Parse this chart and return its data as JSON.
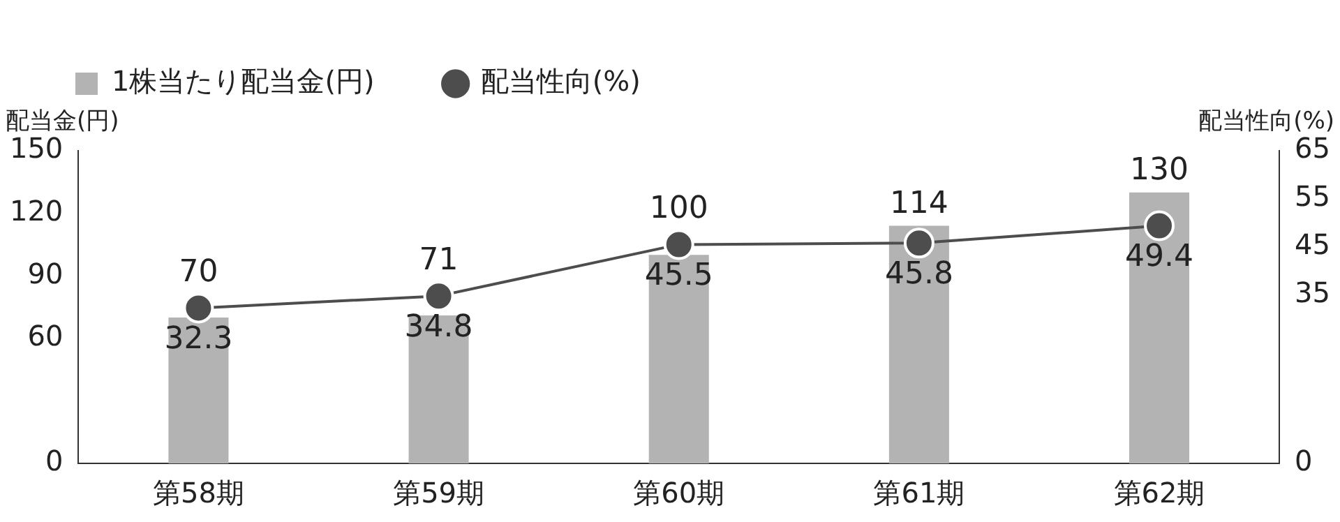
{
  "chart_data": {
    "type": "bar",
    "categories": [
      "第58期",
      "第59期",
      "第60期",
      "第61期",
      "第62期"
    ],
    "ylabel": "配当金(円)",
    "y2label": "配当性向(%)",
    "ylim": [
      0,
      150
    ],
    "yticks": [
      0,
      60,
      90,
      120,
      150
    ],
    "y2lim": [
      0,
      65
    ],
    "y2ticks": [
      0,
      35,
      45,
      55,
      65
    ],
    "series": [
      {
        "name": "1株当たり配当金(円)",
        "color": "#b3b3b3",
        "values": [
          70,
          71,
          100,
          114,
          130
        ]
      },
      {
        "name": "配当性向(%)",
        "type": "line",
        "axis": "y2",
        "color": "#4d4d4d",
        "values": [
          32.3,
          34.8,
          45.5,
          45.8,
          49.4
        ]
      }
    ],
    "data_labels": true,
    "marker": "circle",
    "line_style": "solid",
    "legend": "top left",
    "grid": false
  }
}
